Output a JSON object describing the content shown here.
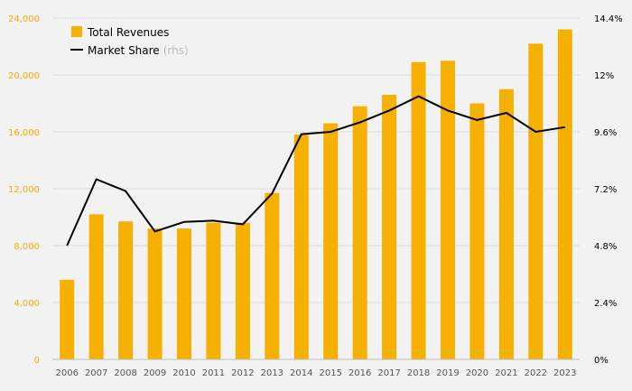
{
  "chart_data": {
    "type": "bar",
    "categories": [
      "2006",
      "2007",
      "2008",
      "2009",
      "2010",
      "2011",
      "2012",
      "2013",
      "2014",
      "2015",
      "2016",
      "2017",
      "2018",
      "2019",
      "2020",
      "2021",
      "2022",
      "2023"
    ],
    "series": [
      {
        "name": "Total Revenues",
        "type": "bar",
        "axis": "left",
        "color": "#f5b000",
        "values": [
          5600,
          10200,
          9700,
          9200,
          9200,
          9600,
          9600,
          11700,
          15800,
          16600,
          17800,
          18600,
          20900,
          21000,
          18000,
          19000,
          22200,
          23200
        ]
      },
      {
        "name": "Market Share",
        "name_note": "(rhs)",
        "type": "line",
        "axis": "right",
        "color": "#000000",
        "values": [
          4.8,
          7.6,
          7.1,
          5.4,
          5.8,
          5.85,
          5.7,
          7.0,
          9.5,
          9.6,
          10.0,
          10.5,
          11.1,
          10.5,
          10.1,
          10.4,
          9.6,
          9.8
        ]
      }
    ],
    "y_left": {
      "ylim": [
        0,
        24000
      ],
      "ticks": [
        "0",
        "4,000",
        "8,000",
        "12,000",
        "16,000",
        "20,000",
        "24,000"
      ],
      "color": "#f5a800"
    },
    "y_right": {
      "ylim": [
        0,
        14.4
      ],
      "ticks": [
        "0%",
        "2.4%",
        "4.8%",
        "7.2%",
        "9.6%",
        "12%",
        "14.4%"
      ],
      "color": "#000000"
    },
    "grid": true,
    "legend": "top-left",
    "title": "",
    "xlabel": "",
    "ylabel": ""
  }
}
